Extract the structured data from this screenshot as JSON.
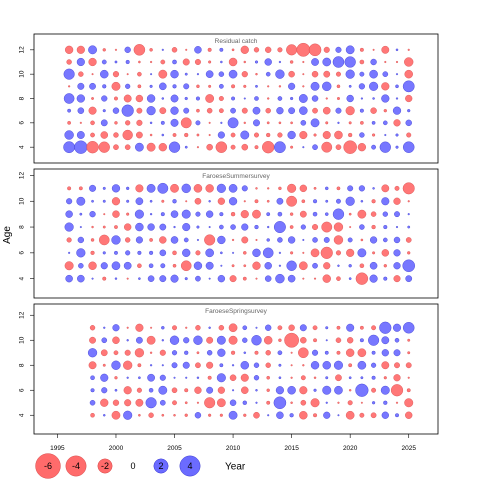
{
  "chart_data": {
    "type": "bubble-residual",
    "ylabel": "Age",
    "xlabel": "Year",
    "x_ticks": [
      1995,
      2000,
      2005,
      2010,
      2015,
      2020,
      2025
    ],
    "y_ticks": [
      4,
      6,
      8,
      10,
      12
    ],
    "colors": {
      "negative": "#ff6b6b",
      "positive": "#6b6bff"
    },
    "legend": {
      "entries": [
        {
          "label": "-6",
          "value": -6
        },
        {
          "label": "-4",
          "value": -4
        },
        {
          "label": "-2",
          "value": -2
        },
        {
          "label": "0",
          "value": 0
        },
        {
          "label": "2",
          "value": 2
        },
        {
          "label": "4",
          "value": 4
        }
      ],
      "title": "Year"
    },
    "panels": [
      {
        "title": "Residual catch",
        "years": [
          1996,
          2025
        ],
        "ages": [
          4,
          12
        ],
        "ylim": [
          2.7,
          13.3
        ],
        "notable": [
          {
            "year": 1997,
            "age": 4,
            "value": 3.4
          },
          {
            "year": 1996,
            "age": 4,
            "value": 2.6
          },
          {
            "year": 1998,
            "age": 4,
            "value": -2.9
          },
          {
            "year": 1999,
            "age": 4,
            "value": -2.4
          },
          {
            "year": 2002,
            "age": 12,
            "value": -2.5
          },
          {
            "year": 2001,
            "age": 7,
            "value": 2.8
          },
          {
            "year": 2016,
            "age": 12,
            "value": -3.6
          },
          {
            "year": 2017,
            "age": 12,
            "value": -3.0
          },
          {
            "year": 2015,
            "age": 12,
            "value": -2.3
          },
          {
            "year": 2013,
            "age": 4,
            "value": -2.9
          },
          {
            "year": 2014,
            "age": 4,
            "value": 2.6
          },
          {
            "year": 2018,
            "age": 4,
            "value": -2.2
          },
          {
            "year": 2020,
            "age": 4,
            "value": -3.5
          },
          {
            "year": 2019,
            "age": 11,
            "value": 2.5
          },
          {
            "year": 2020,
            "age": 11,
            "value": 2.4
          },
          {
            "year": 2025,
            "age": 9,
            "value": 2.6
          },
          {
            "year": 2025,
            "age": 4,
            "value": 2.5
          },
          {
            "year": 2023,
            "age": 4,
            "value": 2.4
          },
          {
            "year": 1996,
            "age": 10,
            "value": 2.3
          },
          {
            "year": 1996,
            "age": 8,
            "value": 2.1
          },
          {
            "year": 2005,
            "age": 4,
            "value": 2.4
          },
          {
            "year": 2009,
            "age": 4,
            "value": -2.5
          },
          {
            "year": 2006,
            "age": 6,
            "value": -2.2
          },
          {
            "year": 2010,
            "age": 6,
            "value": 2.2
          },
          {
            "year": 2001,
            "age": 5,
            "value": -2.0
          }
        ]
      },
      {
        "title": "FaroeseSummersurvey",
        "years": [
          1996,
          2025
        ],
        "ages": [
          4,
          11
        ],
        "ylim": [
          2.5,
          12.5
        ],
        "notable": [
          {
            "year": 2021,
            "age": 4,
            "value": -2.9
          },
          {
            "year": 2025,
            "age": 11,
            "value": -2.7
          },
          {
            "year": 2018,
            "age": 6,
            "value": -2.8
          },
          {
            "year": 2025,
            "age": 5,
            "value": 3.0
          },
          {
            "year": 2014,
            "age": 8,
            "value": 2.7
          },
          {
            "year": 2013,
            "age": 6,
            "value": 2.1
          },
          {
            "year": 2004,
            "age": 11,
            "value": 2.2
          },
          {
            "year": 2015,
            "age": 10,
            "value": -2.2
          },
          {
            "year": 2008,
            "age": 7,
            "value": -2.3
          },
          {
            "year": 1999,
            "age": 7,
            "value": -2.1
          },
          {
            "year": 2019,
            "age": 9,
            "value": 2.4
          },
          {
            "year": 2018,
            "age": 8,
            "value": -2.2
          },
          {
            "year": 2006,
            "age": 5,
            "value": -2.1
          },
          {
            "year": 2015,
            "age": 5,
            "value": 2.0
          }
        ]
      },
      {
        "title": "FaroeseSpringsurvey",
        "years": [
          1998,
          2025
        ],
        "ages": [
          4,
          11
        ],
        "ylim": [
          2.5,
          12.9
        ],
        "notable": [
          {
            "year": 2015,
            "age": 10,
            "value": -4.2
          },
          {
            "year": 2014,
            "age": 5,
            "value": 3.0
          },
          {
            "year": 2021,
            "age": 6,
            "value": 3.3
          },
          {
            "year": 2024,
            "age": 6,
            "value": -2.8
          },
          {
            "year": 2023,
            "age": 11,
            "value": 2.8
          },
          {
            "year": 2025,
            "age": 11,
            "value": 2.5
          },
          {
            "year": 2008,
            "age": 5,
            "value": -2.3
          },
          {
            "year": 2003,
            "age": 5,
            "value": 2.3
          },
          {
            "year": 2016,
            "age": 9,
            "value": -2.1
          },
          {
            "year": 2022,
            "age": 10,
            "value": 2.3
          },
          {
            "year": 2012,
            "age": 10,
            "value": 2.0
          }
        ]
      }
    ]
  }
}
